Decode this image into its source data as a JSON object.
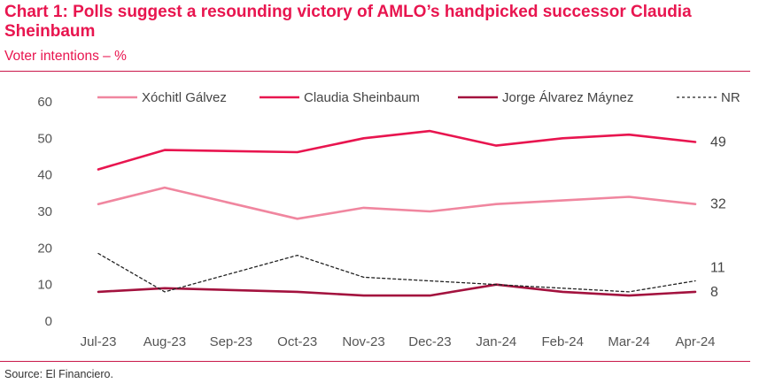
{
  "header": {
    "title": "Chart 1: Polls suggest a resounding victory of AMLO’s handpicked successor Claudia Sheinbaum",
    "subtitle": "Voter intentions – %"
  },
  "footer": {
    "source": "Source: El Financiero."
  },
  "chart_data": {
    "type": "line",
    "title": "Chart 1: Polls suggest a resounding victory of AMLO’s handpicked successor Claudia Sheinbaum",
    "subtitle": "Voter intentions – %",
    "xlabel": "",
    "ylabel": "",
    "ylim": [
      0,
      60
    ],
    "yticks": [
      0,
      10,
      20,
      30,
      40,
      50,
      60
    ],
    "grid": false,
    "legend_position": "top",
    "categories": [
      "Jul-23",
      "Aug-23",
      "Sep-23",
      "Oct-23",
      "Nov-23",
      "Dec-23",
      "Jan-24",
      "Feb-24",
      "Mar-24",
      "Apr-24"
    ],
    "series": [
      {
        "name": "Xóchitl Gálvez",
        "color": "#f0869f",
        "dash": "solid",
        "values": [
          32,
          36.5,
          null,
          28,
          31,
          30,
          32,
          33,
          34,
          32
        ],
        "end_label": "32"
      },
      {
        "name": "Claudia Sheinbaum",
        "color": "#e8154f",
        "dash": "solid",
        "values": [
          41.5,
          46.8,
          null,
          46.2,
          50,
          52,
          48,
          50,
          51,
          49
        ],
        "end_label": "49"
      },
      {
        "name": "Jorge Álvarez Máynez",
        "color": "#a3123e",
        "dash": "solid",
        "values": [
          8,
          9,
          null,
          8,
          7,
          7,
          10,
          8,
          7,
          8
        ],
        "end_label": "8"
      },
      {
        "name": "NR",
        "color": "#222222",
        "dash": "dashed",
        "values": [
          18.5,
          8,
          null,
          18,
          12,
          11,
          10,
          9,
          8,
          11
        ],
        "end_label": "11"
      }
    ]
  }
}
